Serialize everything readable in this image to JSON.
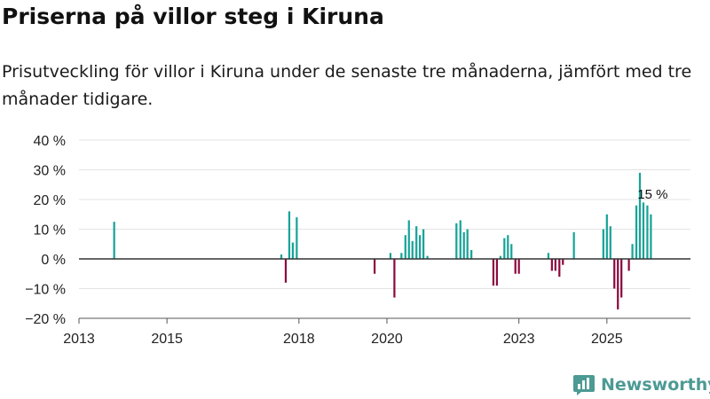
{
  "header": {
    "title": "Priserna på villor steg i Kiruna",
    "subtitle": "Prisutveckling för villor i Kiruna under de senaste tre månaderna, jämfört med tre månader tidigare."
  },
  "brand": {
    "name": "Newsworthy",
    "icon": "newsworthy-logo-icon",
    "color": "#4c9a94"
  },
  "colors": {
    "positive": "#17a398",
    "negative": "#8c0a3f",
    "grid": "#e4e4e4",
    "zero": "#333333"
  },
  "chart_data": {
    "type": "bar",
    "title": "Priserna på villor steg i Kiruna",
    "xlabel": "",
    "ylabel": "",
    "ylim": [
      -20,
      40
    ],
    "xlim": [
      2013.0,
      2026.9
    ],
    "y_ticks": [
      {
        "value": 40,
        "label": "40 %"
      },
      {
        "value": 30,
        "label": "30 %"
      },
      {
        "value": 20,
        "label": "20 %"
      },
      {
        "value": 10,
        "label": "10 %"
      },
      {
        "value": 0,
        "label": "0 %"
      },
      {
        "value": -10,
        "label": "−10 %"
      },
      {
        "value": -20,
        "label": "−20 %"
      }
    ],
    "x_ticks": [
      {
        "value": 2013.0,
        "label": "2013"
      },
      {
        "value": 2015.0,
        "label": "2015"
      },
      {
        "value": 2018.0,
        "label": "2018"
      },
      {
        "value": 2020.0,
        "label": "2020"
      },
      {
        "value": 2023.0,
        "label": "2023"
      },
      {
        "value": 2025.0,
        "label": "2025"
      }
    ],
    "bar_width_years": 0.05,
    "points": [
      {
        "x": 2013.8,
        "y": 12.5
      },
      {
        "x": 2017.6,
        "y": 1.5
      },
      {
        "x": 2017.7,
        "y": -8
      },
      {
        "x": 2017.78,
        "y": 16
      },
      {
        "x": 2017.86,
        "y": 5.5
      },
      {
        "x": 2017.95,
        "y": 14
      },
      {
        "x": 2019.72,
        "y": -5
      },
      {
        "x": 2020.08,
        "y": 2
      },
      {
        "x": 2020.17,
        "y": -13
      },
      {
        "x": 2020.33,
        "y": 2
      },
      {
        "x": 2020.42,
        "y": 8
      },
      {
        "x": 2020.5,
        "y": 13
      },
      {
        "x": 2020.58,
        "y": 6
      },
      {
        "x": 2020.67,
        "y": 11
      },
      {
        "x": 2020.75,
        "y": 8
      },
      {
        "x": 2020.83,
        "y": 10
      },
      {
        "x": 2020.92,
        "y": 1
      },
      {
        "x": 2021.58,
        "y": 12
      },
      {
        "x": 2021.67,
        "y": 13
      },
      {
        "x": 2021.75,
        "y": 9
      },
      {
        "x": 2021.83,
        "y": 10
      },
      {
        "x": 2021.92,
        "y": 3
      },
      {
        "x": 2022.42,
        "y": -9
      },
      {
        "x": 2022.5,
        "y": -9
      },
      {
        "x": 2022.58,
        "y": 1
      },
      {
        "x": 2022.67,
        "y": 7
      },
      {
        "x": 2022.75,
        "y": 8
      },
      {
        "x": 2022.83,
        "y": 5
      },
      {
        "x": 2022.92,
        "y": -5
      },
      {
        "x": 2023.0,
        "y": -5
      },
      {
        "x": 2023.67,
        "y": 2
      },
      {
        "x": 2023.75,
        "y": -4
      },
      {
        "x": 2023.83,
        "y": -4
      },
      {
        "x": 2023.92,
        "y": -6
      },
      {
        "x": 2024.0,
        "y": -2
      },
      {
        "x": 2024.25,
        "y": 9
      },
      {
        "x": 2024.92,
        "y": 10
      },
      {
        "x": 2025.0,
        "y": 15
      },
      {
        "x": 2025.08,
        "y": 11
      },
      {
        "x": 2025.17,
        "y": -10
      },
      {
        "x": 2025.25,
        "y": -17
      },
      {
        "x": 2025.33,
        "y": -13
      },
      {
        "x": 2025.5,
        "y": -4
      },
      {
        "x": 2025.58,
        "y": 5
      },
      {
        "x": 2025.67,
        "y": 18
      },
      {
        "x": 2025.75,
        "y": 29
      },
      {
        "x": 2025.83,
        "y": 19
      },
      {
        "x": 2025.92,
        "y": 18
      },
      {
        "x": 2026.0,
        "y": 15
      }
    ],
    "annotations": [
      {
        "x": 2026.0,
        "y": 15,
        "label": "15 %"
      }
    ]
  }
}
